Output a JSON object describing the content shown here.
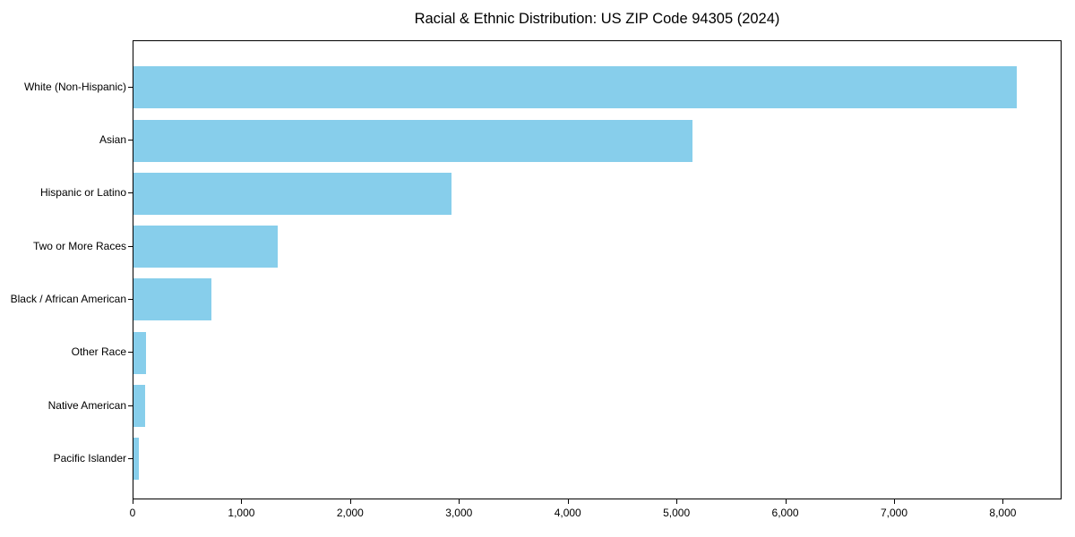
{
  "figure": {
    "title": "Racial & Ethnic Distribution: US ZIP Code 94305 (2024)"
  },
  "chart_data": {
    "type": "bar",
    "orientation": "horizontal",
    "title": "Racial & Ethnic Distribution: US ZIP Code 94305 (2024)",
    "categories": [
      "White (Non-Hispanic)",
      "Asian",
      "Hispanic or Latino",
      "Two or More Races",
      "Black / African American",
      "Other Race",
      "Native American",
      "Pacific Islander"
    ],
    "values": [
      8135,
      5150,
      2930,
      1325,
      720,
      115,
      110,
      50
    ],
    "xlabel": "",
    "ylabel": "",
    "xlim": [
      0,
      8540
    ],
    "x_ticks": [
      0,
      1000,
      2000,
      3000,
      4000,
      5000,
      6000,
      7000,
      8000
    ],
    "x_tick_labels": [
      "0",
      "1,000",
      "2,000",
      "3,000",
      "4,000",
      "5,000",
      "6,000",
      "7,000",
      "8,000"
    ],
    "bar_color": "#87ceeb",
    "axis_color": "#000000",
    "background_color": "#ffffff",
    "grid": false,
    "legend_position": "none",
    "value_labels_shown": false
  }
}
